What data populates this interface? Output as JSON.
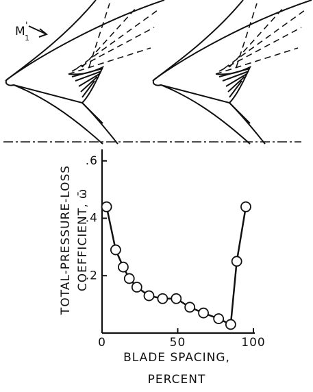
{
  "diagram": {
    "mach_label": "M",
    "mach_sub": "1",
    "mach_prime": "'"
  },
  "chart_data": {
    "type": "line",
    "y_label": [
      "TOTAL-PRESSURE-LOSS",
      "COEFFICIENT, ω̄"
    ],
    "x_label": [
      "BLADE SPACING,",
      "PERCENT"
    ],
    "x": [
      3,
      9,
      14,
      18,
      23,
      31,
      40,
      49,
      58,
      67,
      77,
      85,
      89,
      95
    ],
    "series": [
      {
        "color": "#111111",
        "values": [
          0.44,
          0.29,
          0.23,
          0.19,
          0.16,
          0.13,
          0.12,
          0.12,
          0.09,
          0.07,
          0.05,
          0.03,
          0.25,
          0.44
        ]
      }
    ],
    "xlim": [
      0,
      100
    ],
    "ylim": [
      0,
      0.64
    ],
    "xticks": [
      0,
      50,
      100
    ],
    "yticks": [
      {
        "value": 0.2,
        "label": ".2"
      },
      {
        "value": 0.4,
        "label": ".4"
      },
      {
        "value": 0.6,
        "label": ".6"
      }
    ],
    "grid": false
  }
}
